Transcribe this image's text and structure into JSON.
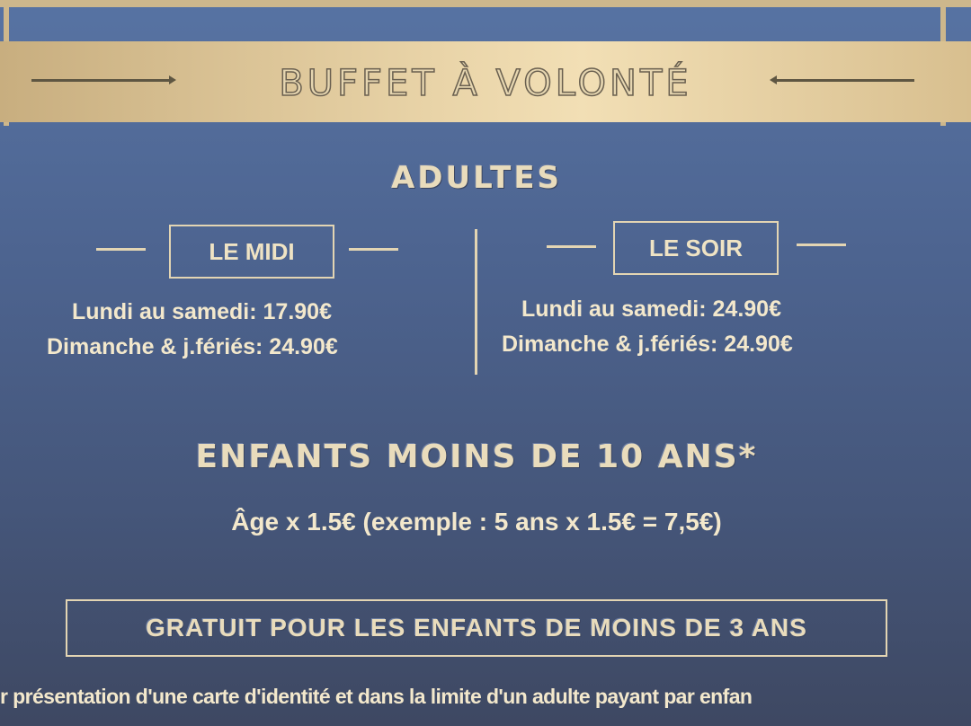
{
  "header": {
    "title": "BUFFET À VOLONTÉ"
  },
  "adults": {
    "title": "ADULTES",
    "midi": {
      "label": "LE MIDI",
      "weekday": "Lundi au samedi: 17.90€",
      "sunday": "Dimanche & j.fériés: 24.90€"
    },
    "soir": {
      "label": "LE SOIR",
      "weekday": "Lundi au samedi: 24.90€",
      "sunday": "Dimanche & j.fériés: 24.90€"
    }
  },
  "children": {
    "title": "ENFANTS MOINS DE 10 ANS*",
    "rule": "Âge x 1.5€ (exemple : 5 ans x 1.5€ = 7,5€)",
    "free": "GRATUIT POUR LES ENFANTS DE MOINS DE 3 ANS",
    "footnote": "r présentation d'une carte d'identité et dans la limite d'un adulte payant par enfan"
  },
  "colors": {
    "background": "#4d6490",
    "gold": "#e9d4a8",
    "text": "#efe3c4"
  }
}
